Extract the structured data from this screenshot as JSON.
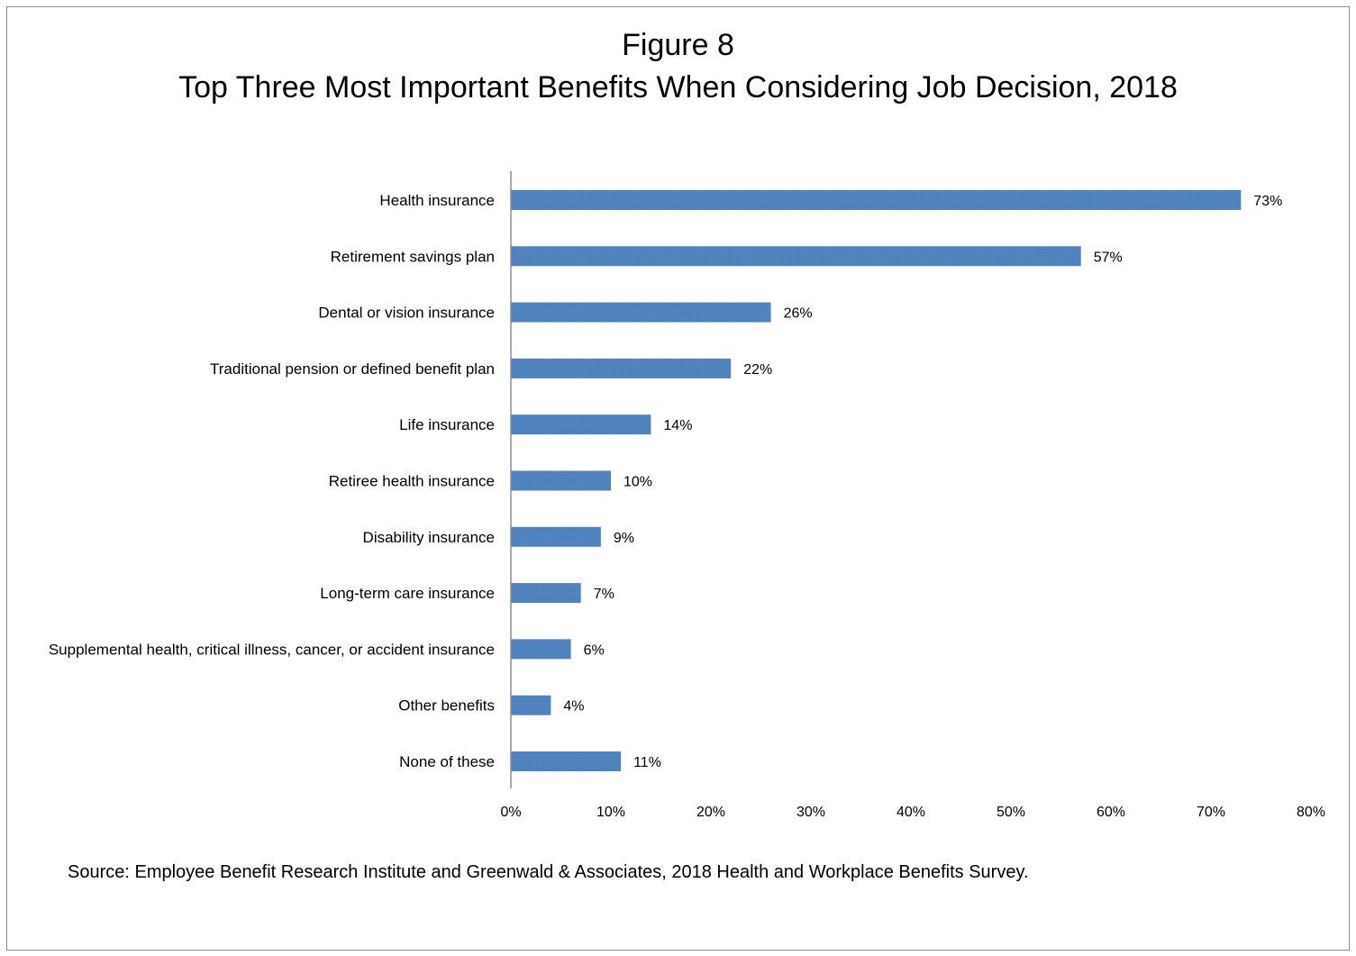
{
  "figure_label": "Figure 8",
  "title": "Top Three Most Important Benefits When Considering Job Decision, 2018",
  "source": "Source: Employee Benefit Research Institute and Greenwald & Associates, 2018 Health and Workplace Benefits Survey.",
  "chart_data": {
    "type": "bar",
    "orientation": "horizontal",
    "title": "Top Three Most Important Benefits When Considering Job Decision, 2018",
    "xlabel": "",
    "ylabel": "",
    "xlim": [
      0,
      80
    ],
    "x_ticks": [
      0,
      10,
      20,
      30,
      40,
      50,
      60,
      70,
      80
    ],
    "x_tick_labels": [
      "0%",
      "10%",
      "20%",
      "30%",
      "40%",
      "50%",
      "60%",
      "70%",
      "80%"
    ],
    "grid": false,
    "legend": "none",
    "bar_color": "#4f81bd",
    "categories": [
      "Health insurance",
      "Retirement savings plan",
      "Dental or vision insurance",
      "Traditional pension or defined benefit plan",
      "Life insurance",
      "Retiree health insurance",
      "Disability insurance",
      "Long-term care insurance",
      "Supplemental health, critical illness, cancer, or accident insurance",
      "Other benefits",
      "None of these"
    ],
    "values": [
      73,
      57,
      26,
      22,
      14,
      10,
      9,
      7,
      6,
      4,
      11
    ],
    "value_labels": [
      "73%",
      "57%",
      "26%",
      "22%",
      "14%",
      "10%",
      "9%",
      "7%",
      "6%",
      "4%",
      "11%"
    ]
  }
}
